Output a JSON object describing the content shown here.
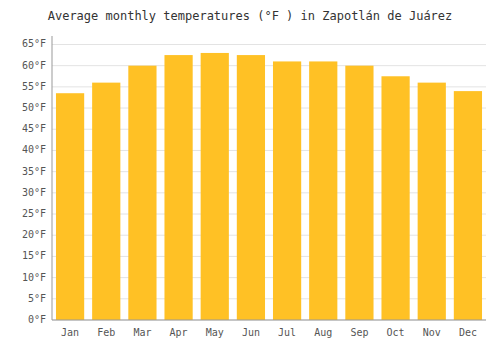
{
  "chart_data": {
    "type": "bar",
    "title": "Average monthly temperatures (°F ) in Zapotlán de Juárez",
    "categories": [
      "Jan",
      "Feb",
      "Mar",
      "Apr",
      "May",
      "Jun",
      "Jul",
      "Aug",
      "Sep",
      "Oct",
      "Nov",
      "Dec"
    ],
    "values": [
      53.5,
      56,
      60,
      62.5,
      63,
      62.5,
      61,
      61,
      60,
      57.5,
      56,
      54
    ],
    "color": "#FFC125",
    "ylim": [
      0,
      67
    ],
    "yticks": [
      {
        "value": 0,
        "label": "0°F"
      },
      {
        "value": 5,
        "label": "5°F"
      },
      {
        "value": 10,
        "label": "10°F"
      },
      {
        "value": 15,
        "label": "15°F"
      },
      {
        "value": 20,
        "label": "20°F"
      },
      {
        "value": 25,
        "label": "25°F"
      },
      {
        "value": 30,
        "label": "30°F"
      },
      {
        "value": 35,
        "label": "35°F"
      },
      {
        "value": 40,
        "label": "40°F"
      },
      {
        "value": 45,
        "label": "45°F"
      },
      {
        "value": 50,
        "label": "50°F"
      },
      {
        "value": 55,
        "label": "55°F"
      },
      {
        "value": 60,
        "label": "60°F"
      },
      {
        "value": 65,
        "label": "65°F"
      }
    ],
    "grid": true
  }
}
